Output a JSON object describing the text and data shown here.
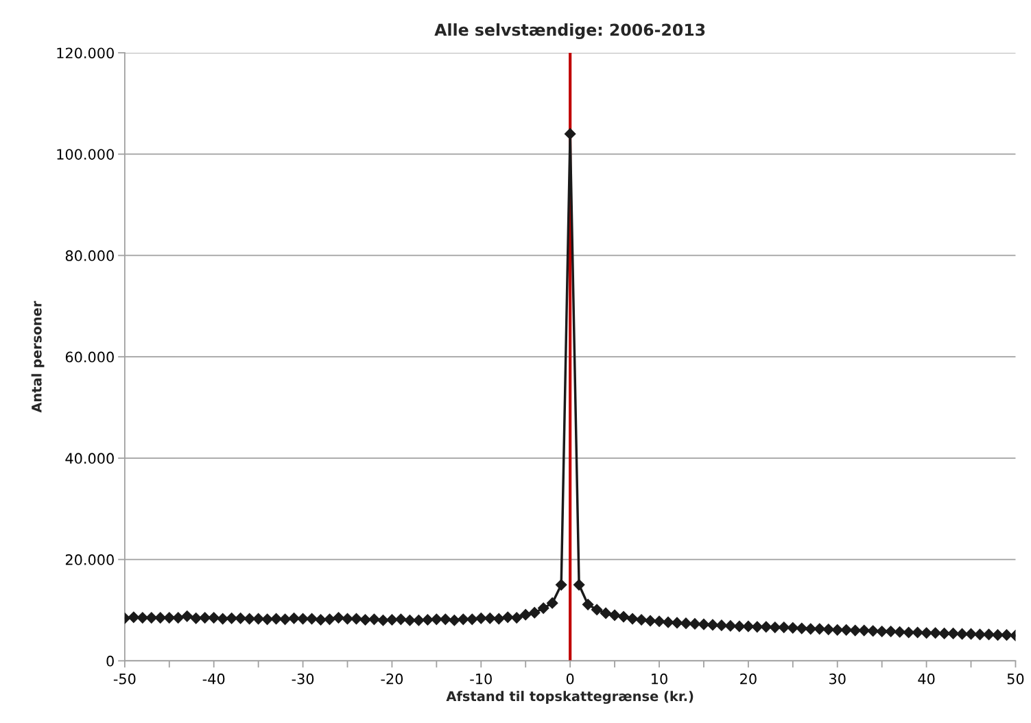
{
  "chart_data": {
    "type": "line",
    "title": "Alle selvstændige: 2006-2013",
    "xlabel": "Afstand til topskattegrænse (kr.)",
    "ylabel": "Antal personer",
    "xlim": [
      -50,
      50
    ],
    "xticks": [
      -50,
      {
        "value": -45,
        "label": null
      },
      -40,
      {
        "value": -35,
        "label": null
      },
      -30,
      {
        "value": -25,
        "label": null
      },
      -20,
      {
        "value": -15,
        "label": null
      },
      -10,
      {
        "value": -5,
        "label": null
      },
      0,
      {
        "value": 5,
        "label": null
      },
      10,
      {
        "value": 15,
        "label": null
      },
      20,
      {
        "value": 25,
        "label": null
      },
      30,
      {
        "value": 35,
        "label": null
      },
      40,
      {
        "value": 45,
        "label": null
      },
      50
    ],
    "ylim": [
      0,
      120000
    ],
    "yticks": [
      {
        "value": 0,
        "label": "0"
      },
      {
        "value": 20000,
        "label": "20.000"
      },
      {
        "value": 40000,
        "label": "40.000"
      },
      {
        "value": 60000,
        "label": "60.000"
      },
      {
        "value": 80000,
        "label": "80.000"
      },
      {
        "value": 100000,
        "label": "100.000"
      },
      {
        "value": 120000,
        "label": "120.000"
      }
    ],
    "grid": "y",
    "marker": "diamond",
    "line_style": "solid",
    "ref_lines": [
      {
        "axis": "x",
        "value": 0,
        "color": "#c00000"
      }
    ],
    "x": [
      -50,
      -49,
      -48,
      -47,
      -46,
      -45,
      -44,
      -43,
      -42,
      -41,
      -40,
      -39,
      -38,
      -37,
      -36,
      -35,
      -34,
      -33,
      -32,
      -31,
      -30,
      -29,
      -28,
      -27,
      -26,
      -25,
      -24,
      -23,
      -22,
      -21,
      -20,
      -19,
      -18,
      -17,
      -16,
      -15,
      -14,
      -13,
      -12,
      -11,
      -10,
      -9,
      -8,
      -7,
      -6,
      -5,
      -4,
      -3,
      -2,
      -1,
      0,
      1,
      2,
      3,
      4,
      5,
      6,
      7,
      8,
      9,
      10,
      11,
      12,
      13,
      14,
      15,
      16,
      17,
      18,
      19,
      20,
      21,
      22,
      23,
      24,
      25,
      26,
      27,
      28,
      29,
      30,
      31,
      32,
      33,
      34,
      35,
      36,
      37,
      38,
      39,
      40,
      41,
      42,
      43,
      44,
      45,
      46,
      47,
      48,
      49,
      50
    ],
    "series": [
      {
        "color": "#1a1a1a",
        "values": [
          8400,
          8600,
          8500,
          8500,
          8500,
          8500,
          8500,
          8800,
          8400,
          8500,
          8500,
          8300,
          8400,
          8400,
          8300,
          8300,
          8200,
          8300,
          8200,
          8400,
          8300,
          8300,
          8100,
          8200,
          8500,
          8300,
          8300,
          8100,
          8200,
          8000,
          8100,
          8200,
          8000,
          8000,
          8100,
          8200,
          8200,
          8000,
          8200,
          8200,
          8400,
          8400,
          8300,
          8600,
          8500,
          9100,
          9500,
          10400,
          11400,
          15000,
          104000,
          15000,
          11100,
          10100,
          9400,
          9000,
          8700,
          8300,
          8100,
          7900,
          7800,
          7600,
          7500,
          7400,
          7300,
          7200,
          7100,
          7000,
          6900,
          6800,
          6800,
          6700,
          6700,
          6600,
          6600,
          6500,
          6400,
          6300,
          6300,
          6200,
          6100,
          6100,
          6000,
          6000,
          5900,
          5800,
          5800,
          5700,
          5600,
          5600,
          5500,
          5500,
          5400,
          5400,
          5300,
          5300,
          5200,
          5200,
          5100,
          5100,
          5000
        ]
      }
    ]
  }
}
